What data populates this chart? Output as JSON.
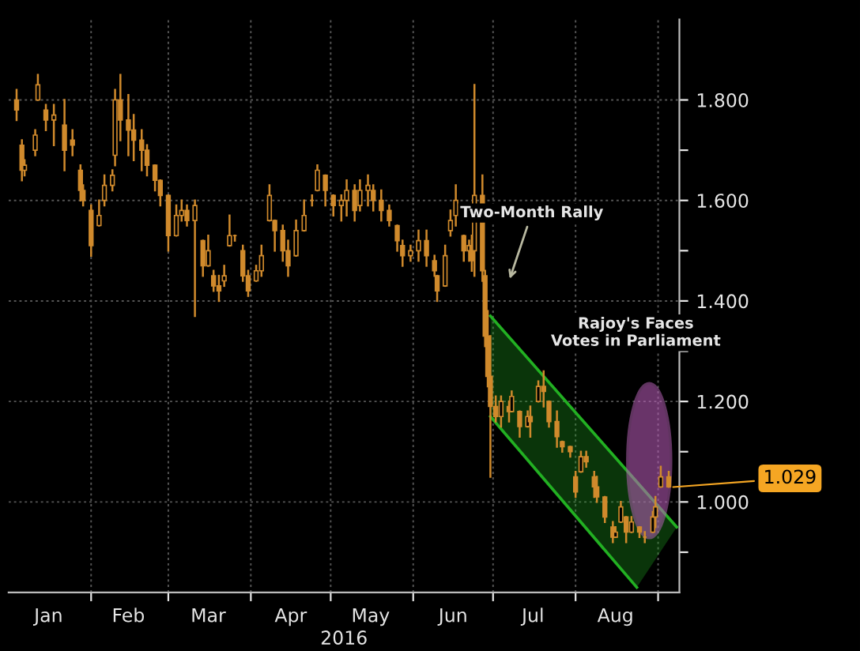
{
  "chart_data": {
    "type": "candlestick",
    "color": "#d08a2c",
    "xlabel": "2016",
    "x": [
      "2016-01-04",
      "2016-01-06",
      "2016-01-07",
      "2016-01-11",
      "2016-01-12",
      "2016-01-15",
      "2016-01-18",
      "2016-01-22",
      "2016-01-25",
      "2016-01-28",
      "2016-01-29",
      "2016-02-01",
      "2016-02-04",
      "2016-02-06",
      "2016-02-09",
      "2016-02-10",
      "2016-02-12",
      "2016-02-15",
      "2016-02-17",
      "2016-02-20",
      "2016-02-22",
      "2016-02-25",
      "2016-02-27",
      "2016-03-01",
      "2016-03-04",
      "2016-03-06",
      "2016-03-08",
      "2016-03-11",
      "2016-03-14",
      "2016-03-16",
      "2016-03-18",
      "2016-03-20",
      "2016-03-22",
      "2016-03-24",
      "2016-03-26",
      "2016-03-29",
      "2016-03-31",
      "2016-04-03",
      "2016-04-05",
      "2016-04-08",
      "2016-04-10",
      "2016-04-13",
      "2016-04-15",
      "2016-04-18",
      "2016-04-21",
      "2016-04-24",
      "2016-04-26",
      "2016-04-29",
      "2016-05-02",
      "2016-05-05",
      "2016-05-07",
      "2016-05-10",
      "2016-05-12",
      "2016-05-15",
      "2016-05-17",
      "2016-05-20",
      "2016-05-23",
      "2016-05-26",
      "2016-05-28",
      "2016-05-31",
      "2016-06-03",
      "2016-06-06",
      "2016-06-09",
      "2016-06-10",
      "2016-06-13",
      "2016-06-15",
      "2016-06-17",
      "2016-06-20",
      "2016-06-22",
      "2016-06-23",
      "2016-06-24",
      "2016-06-27",
      "2016-06-28",
      "2016-06-29",
      "2016-06-30",
      "2016-07-02",
      "2016-07-04",
      "2016-07-07",
      "2016-07-08",
      "2016-07-11",
      "2016-07-14",
      "2016-07-15",
      "2016-07-18",
      "2016-07-20",
      "2016-07-22",
      "2016-07-25",
      "2016-07-27",
      "2016-07-30",
      "2016-08-01",
      "2016-08-03",
      "2016-08-05",
      "2016-08-08",
      "2016-08-09",
      "2016-08-12",
      "2016-08-15",
      "2016-08-16",
      "2016-08-18",
      "2016-08-20",
      "2016-08-22",
      "2016-08-25",
      "2016-08-27",
      "2016-08-30",
      "2016-08-31",
      "2016-09-02",
      "2016-09-05"
    ],
    "ohlc": [
      [
        1.8,
        1.82,
        1.76,
        1.78
      ],
      [
        1.71,
        1.72,
        1.64,
        1.66
      ],
      [
        1.66,
        1.68,
        1.65,
        1.67
      ],
      [
        1.7,
        1.74,
        1.69,
        1.73
      ],
      [
        1.8,
        1.85,
        1.8,
        1.83
      ],
      [
        1.78,
        1.79,
        1.74,
        1.76
      ],
      [
        1.76,
        1.79,
        1.71,
        1.77
      ],
      [
        1.75,
        1.8,
        1.66,
        1.7
      ],
      [
        1.72,
        1.74,
        1.69,
        1.71
      ],
      [
        1.66,
        1.67,
        1.6,
        1.62
      ],
      [
        1.62,
        1.63,
        1.59,
        1.6
      ],
      [
        1.58,
        1.59,
        1.49,
        1.51
      ],
      [
        1.55,
        1.6,
        1.55,
        1.57
      ],
      [
        1.6,
        1.65,
        1.59,
        1.63
      ],
      [
        1.63,
        1.66,
        1.62,
        1.65
      ],
      [
        1.69,
        1.82,
        1.67,
        1.8
      ],
      [
        1.8,
        1.85,
        1.72,
        1.76
      ],
      [
        1.76,
        1.81,
        1.69,
        1.74
      ],
      [
        1.74,
        1.77,
        1.68,
        1.72
      ],
      [
        1.72,
        1.74,
        1.66,
        1.7
      ],
      [
        1.7,
        1.71,
        1.65,
        1.67
      ],
      [
        1.67,
        1.67,
        1.62,
        1.64
      ],
      [
        1.64,
        1.64,
        1.59,
        1.61
      ],
      [
        1.61,
        1.61,
        1.5,
        1.53
      ],
      [
        1.53,
        1.59,
        1.53,
        1.57
      ],
      [
        1.57,
        1.6,
        1.56,
        1.58
      ],
      [
        1.58,
        1.59,
        1.55,
        1.56
      ],
      [
        1.56,
        1.6,
        1.37,
        1.59
      ],
      [
        1.52,
        1.52,
        1.45,
        1.47
      ],
      [
        1.47,
        1.53,
        1.47,
        1.5
      ],
      [
        1.45,
        1.46,
        1.42,
        1.43
      ],
      [
        1.43,
        1.45,
        1.4,
        1.42
      ],
      [
        1.44,
        1.47,
        1.43,
        1.45
      ],
      [
        1.51,
        1.57,
        1.51,
        1.53
      ],
      [
        1.53,
        1.53,
        1.52,
        1.53
      ],
      [
        1.5,
        1.51,
        1.44,
        1.45
      ],
      [
        1.45,
        1.46,
        1.41,
        1.42
      ],
      [
        1.44,
        1.47,
        1.44,
        1.46
      ],
      [
        1.46,
        1.51,
        1.45,
        1.49
      ],
      [
        1.56,
        1.63,
        1.56,
        1.61
      ],
      [
        1.56,
        1.56,
        1.5,
        1.54
      ],
      [
        1.54,
        1.55,
        1.48,
        1.5
      ],
      [
        1.5,
        1.52,
        1.45,
        1.47
      ],
      [
        1.49,
        1.56,
        1.49,
        1.54
      ],
      [
        1.54,
        1.6,
        1.54,
        1.57
      ],
      [
        1.6,
        1.61,
        1.59,
        1.6
      ],
      [
        1.62,
        1.67,
        1.62,
        1.66
      ],
      [
        1.65,
        1.65,
        1.59,
        1.62
      ],
      [
        1.61,
        1.61,
        1.57,
        1.59
      ],
      [
        1.59,
        1.61,
        1.56,
        1.6
      ],
      [
        1.6,
        1.64,
        1.57,
        1.62
      ],
      [
        1.62,
        1.63,
        1.56,
        1.58
      ],
      [
        1.59,
        1.64,
        1.58,
        1.62
      ],
      [
        1.62,
        1.65,
        1.59,
        1.63
      ],
      [
        1.62,
        1.63,
        1.58,
        1.6
      ],
      [
        1.6,
        1.62,
        1.56,
        1.58
      ],
      [
        1.58,
        1.59,
        1.55,
        1.56
      ],
      [
        1.55,
        1.55,
        1.5,
        1.52
      ],
      [
        1.51,
        1.52,
        1.47,
        1.49
      ],
      [
        1.49,
        1.51,
        1.48,
        1.5
      ],
      [
        1.5,
        1.54,
        1.48,
        1.52
      ],
      [
        1.52,
        1.54,
        1.47,
        1.49
      ],
      [
        1.48,
        1.49,
        1.45,
        1.46
      ],
      [
        1.45,
        1.45,
        1.4,
        1.42
      ],
      [
        1.43,
        1.51,
        1.43,
        1.49
      ],
      [
        1.54,
        1.58,
        1.53,
        1.56
      ],
      [
        1.57,
        1.63,
        1.55,
        1.6
      ],
      [
        1.53,
        1.53,
        1.48,
        1.5
      ],
      [
        1.5,
        1.52,
        1.48,
        1.51
      ],
      [
        1.51,
        1.53,
        1.46,
        1.48
      ],
      [
        1.5,
        1.83,
        1.45,
        1.61
      ],
      [
        1.61,
        1.65,
        1.44,
        1.46
      ],
      [
        1.45,
        1.46,
        1.31,
        1.33
      ],
      [
        1.33,
        1.38,
        1.23,
        1.25
      ],
      [
        1.25,
        1.33,
        1.05,
        1.19
      ],
      [
        1.19,
        1.21,
        1.16,
        1.17
      ],
      [
        1.17,
        1.21,
        1.15,
        1.2
      ],
      [
        1.19,
        1.2,
        1.16,
        1.18
      ],
      [
        1.18,
        1.22,
        1.18,
        1.21
      ],
      [
        1.18,
        1.18,
        1.13,
        1.15
      ],
      [
        1.15,
        1.18,
        1.15,
        1.17
      ],
      [
        1.17,
        1.19,
        1.13,
        1.16
      ],
      [
        1.2,
        1.24,
        1.2,
        1.23
      ],
      [
        1.23,
        1.26,
        1.19,
        1.22
      ],
      [
        1.2,
        1.2,
        1.15,
        1.16
      ],
      [
        1.16,
        1.18,
        1.11,
        1.13
      ],
      [
        1.12,
        1.12,
        1.1,
        1.11
      ],
      [
        1.11,
        1.11,
        1.09,
        1.1
      ],
      [
        1.05,
        1.06,
        1.01,
        1.02
      ],
      [
        1.06,
        1.1,
        1.06,
        1.09
      ],
      [
        1.09,
        1.1,
        1.07,
        1.08
      ],
      [
        1.05,
        1.06,
        1.01,
        1.03
      ],
      [
        1.03,
        1.05,
        1.0,
        1.01
      ],
      [
        1.01,
        1.01,
        0.96,
        0.97
      ],
      [
        0.95,
        0.96,
        0.92,
        0.93
      ],
      [
        0.93,
        0.95,
        0.93,
        0.94
      ],
      [
        0.96,
        1.0,
        0.96,
        0.99
      ],
      [
        0.97,
        0.97,
        0.92,
        0.94
      ],
      [
        0.94,
        0.97,
        0.94,
        0.96
      ],
      [
        0.95,
        0.95,
        0.93,
        0.94
      ],
      [
        0.93,
        0.94,
        0.92,
        0.93
      ],
      [
        0.94,
        0.98,
        0.94,
        0.97
      ],
      [
        0.97,
        1.01,
        0.95,
        0.99
      ],
      [
        1.03,
        1.07,
        1.03,
        1.05
      ],
      [
        1.05,
        1.06,
        1.03,
        1.03
      ]
    ],
    "series": [
      {
        "type": "line",
        "color": "#22b022",
        "x": [
          "2016-06-30",
          "2016-09-08"
        ],
        "values": [
          1.37,
          0.95
        ]
      },
      {
        "type": "line",
        "color": "#22b022",
        "x": [
          "2016-06-30",
          "2016-08-24"
        ],
        "values": [
          1.17,
          0.83
        ]
      }
    ],
    "xlim": [
      "2016-01-01",
      "2016-09-09"
    ],
    "xticks": [
      {
        "value": "2016-01-16",
        "label": "Jan"
      },
      {
        "value": "2016-02-01",
        "label": null
      },
      {
        "value": "2016-02-15",
        "label": "Feb"
      },
      {
        "value": "2016-03-01",
        "label": null
      },
      {
        "value": "2016-03-16",
        "label": "Mar"
      },
      {
        "value": "2016-04-01",
        "label": null
      },
      {
        "value": "2016-04-16",
        "label": "Apr"
      },
      {
        "value": "2016-05-01",
        "label": null
      },
      {
        "value": "2016-05-16",
        "label": "May"
      },
      {
        "value": "2016-06-01",
        "label": null
      },
      {
        "value": "2016-06-16",
        "label": "Jun"
      },
      {
        "value": "2016-07-01",
        "label": null
      },
      {
        "value": "2016-07-16",
        "label": "Jul"
      },
      {
        "value": "2016-08-01",
        "label": null
      },
      {
        "value": "2016-08-16",
        "label": "Aug"
      },
      {
        "value": "2016-09-01",
        "label": null
      }
    ],
    "ylim": [
      0.82,
      1.96
    ],
    "yticks": [
      {
        "value": 0.9,
        "label": null
      },
      {
        "value": 1.0,
        "label": "1.000"
      },
      {
        "value": 1.1,
        "label": null
      },
      {
        "value": 1.2,
        "label": "1.200"
      },
      {
        "value": 1.3,
        "label": null
      },
      {
        "value": 1.4,
        "label": "1.400"
      },
      {
        "value": 1.5,
        "label": null
      },
      {
        "value": 1.6,
        "label": "1.600"
      },
      {
        "value": 1.7,
        "label": null
      },
      {
        "value": 1.8,
        "label": "1.800"
      }
    ],
    "grid": true,
    "annotations": [
      "Two-Month Rally",
      "Rajoy's Faces\nVotes in Parliament",
      {
        "text": "1.029",
        "x": "2016-09-05",
        "y": 1.029
      }
    ]
  }
}
